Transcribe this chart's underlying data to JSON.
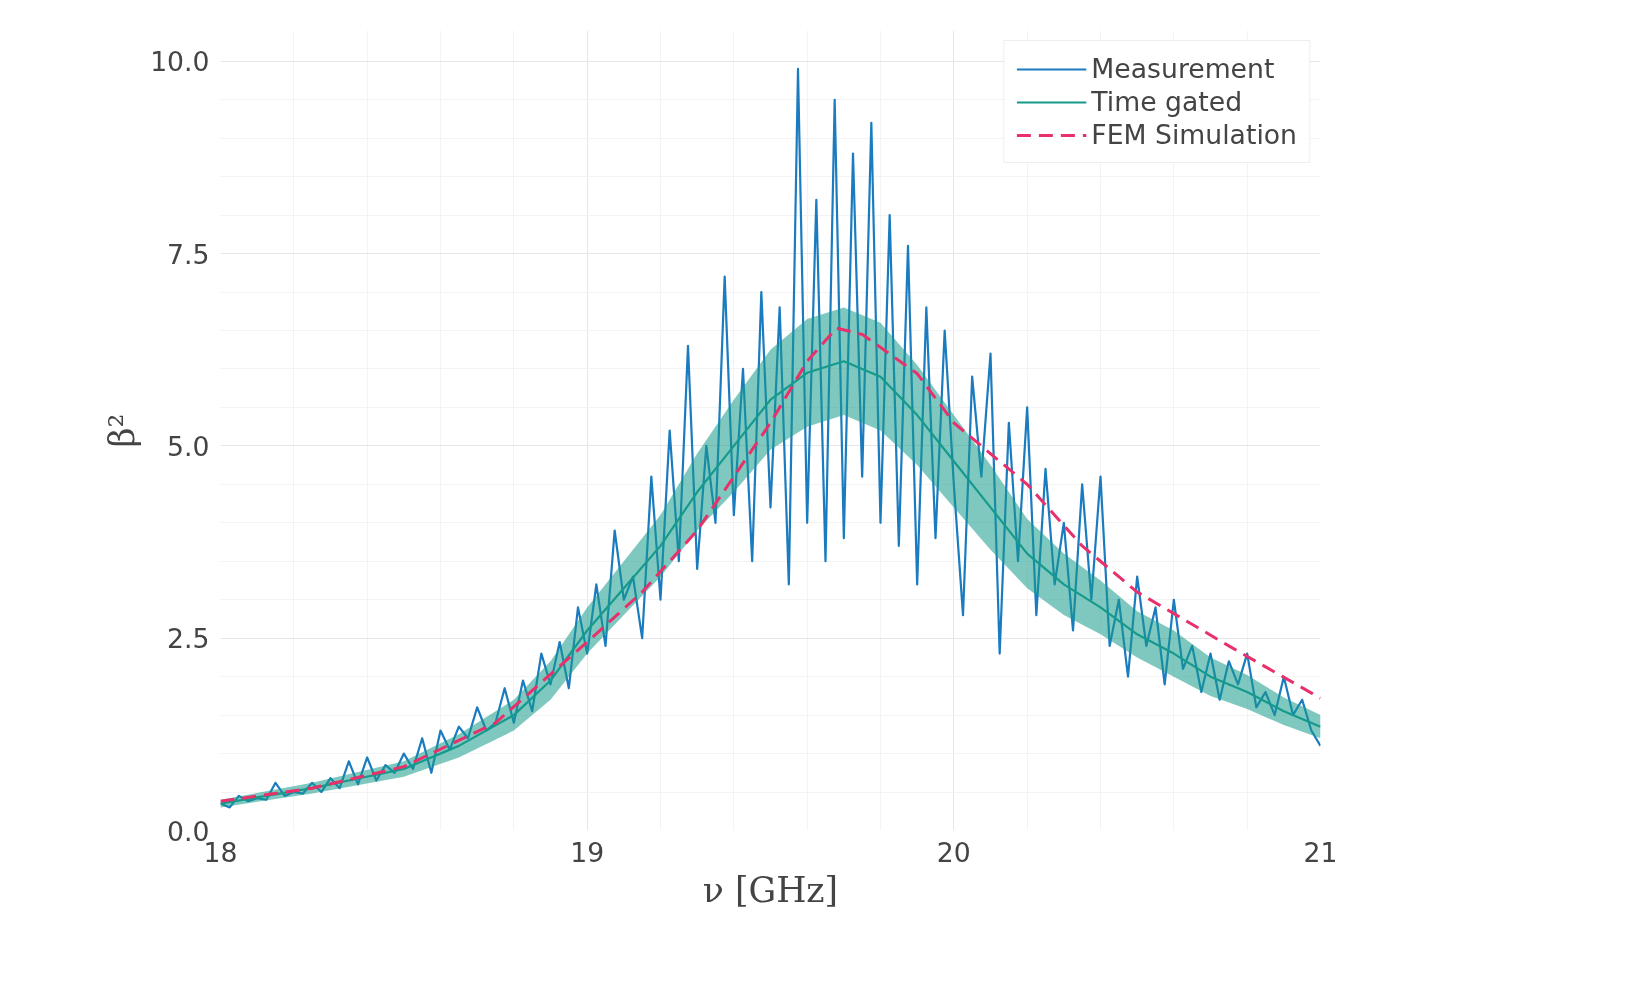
{
  "chart_data": {
    "type": "line",
    "xlabel": "ν [GHz]",
    "ylabel": "β²",
    "xlim": [
      18,
      21
    ],
    "ylim": [
      0,
      10.4
    ],
    "xticks": [
      18,
      19,
      20,
      21
    ],
    "yticks": [
      {
        "value": 0,
        "label": "0.0"
      },
      {
        "value": 2.5,
        "label": "2.5"
      },
      {
        "value": 5,
        "label": "5.0"
      },
      {
        "value": 7.5,
        "label": "7.5"
      },
      {
        "value": 10,
        "label": "10.0"
      }
    ],
    "grid": true,
    "legend": "top right",
    "line_style": "solid",
    "marker": "none",
    "series": [
      {
        "name": "Measurement",
        "color": "#1a7bbf",
        "x": [
          18.0,
          18.025,
          18.05,
          18.075,
          18.1,
          18.125,
          18.15,
          18.175,
          18.2,
          18.225,
          18.25,
          18.275,
          18.3,
          18.325,
          18.35,
          18.375,
          18.4,
          18.425,
          18.45,
          18.475,
          18.5,
          18.525,
          18.55,
          18.575,
          18.6,
          18.625,
          18.65,
          18.675,
          18.7,
          18.725,
          18.75,
          18.775,
          18.8,
          18.825,
          18.85,
          18.875,
          18.9,
          18.925,
          18.95,
          18.975,
          19.0,
          19.025,
          19.05,
          19.075,
          19.1,
          19.125,
          19.15,
          19.175,
          19.2,
          19.225,
          19.25,
          19.275,
          19.3,
          19.325,
          19.35,
          19.375,
          19.4,
          19.425,
          19.45,
          19.475,
          19.5,
          19.525,
          19.55,
          19.575,
          19.6,
          19.625,
          19.65,
          19.675,
          19.7,
          19.725,
          19.75,
          19.775,
          19.8,
          19.825,
          19.85,
          19.875,
          19.9,
          19.925,
          19.95,
          19.975,
          20.0,
          20.025,
          20.05,
          20.075,
          20.1,
          20.125,
          20.15,
          20.175,
          20.2,
          20.225,
          20.25,
          20.275,
          20.3,
          20.325,
          20.35,
          20.375,
          20.4,
          20.425,
          20.45,
          20.475,
          20.5,
          20.525,
          20.55,
          20.575,
          20.6,
          20.625,
          20.65,
          20.675,
          20.7,
          20.725,
          20.75,
          20.775,
          20.8,
          20.825,
          20.85,
          20.875,
          20.9,
          20.925,
          20.95,
          20.975,
          21.0
        ],
        "values": [
          0.35,
          0.3,
          0.45,
          0.38,
          0.42,
          0.4,
          0.62,
          0.45,
          0.5,
          0.48,
          0.62,
          0.5,
          0.68,
          0.55,
          0.9,
          0.6,
          0.95,
          0.65,
          0.85,
          0.75,
          1.0,
          0.8,
          1.2,
          0.75,
          1.3,
          1.05,
          1.35,
          1.2,
          1.6,
          1.3,
          1.4,
          1.85,
          1.4,
          1.95,
          1.55,
          2.3,
          1.9,
          2.45,
          1.85,
          2.9,
          2.3,
          3.2,
          2.4,
          3.9,
          3.0,
          3.3,
          2.5,
          4.6,
          3.0,
          5.2,
          3.5,
          6.3,
          3.4,
          5.0,
          4.0,
          7.2,
          4.1,
          6.0,
          3.5,
          7.0,
          4.2,
          6.8,
          3.2,
          9.9,
          4.0,
          8.2,
          3.5,
          9.5,
          3.8,
          8.8,
          4.6,
          9.2,
          4.0,
          8.0,
          3.7,
          7.6,
          3.2,
          6.8,
          3.8,
          6.5,
          4.5,
          2.8,
          5.9,
          4.6,
          6.2,
          2.3,
          5.3,
          3.5,
          5.5,
          2.8,
          4.7,
          3.2,
          4.0,
          2.6,
          4.5,
          3.0,
          4.6,
          2.4,
          3.0,
          2.0,
          3.3,
          2.4,
          2.9,
          1.9,
          3.0,
          2.1,
          2.4,
          1.8,
          2.3,
          1.7,
          2.2,
          1.9,
          2.3,
          1.6,
          1.8,
          1.5,
          2.0,
          1.5,
          1.7,
          1.3,
          1.1
        ]
      },
      {
        "name": "Time gated",
        "color": "#159a8c",
        "x": [
          18.0,
          18.25,
          18.5,
          18.65,
          18.8,
          18.9,
          19.0,
          19.1,
          19.2,
          19.3,
          19.4,
          19.5,
          19.6,
          19.7,
          19.8,
          19.9,
          20.0,
          20.1,
          20.2,
          20.3,
          20.4,
          20.5,
          20.6,
          20.7,
          20.8,
          20.9,
          21.0
        ],
        "values": [
          0.35,
          0.55,
          0.8,
          1.1,
          1.5,
          1.95,
          2.6,
          3.15,
          3.7,
          4.4,
          5.0,
          5.6,
          5.95,
          6.1,
          5.9,
          5.4,
          4.8,
          4.2,
          3.6,
          3.2,
          2.9,
          2.55,
          2.3,
          2.0,
          1.8,
          1.55,
          1.35
        ],
        "lower": [
          0.3,
          0.48,
          0.7,
          0.95,
          1.3,
          1.7,
          2.3,
          2.8,
          3.3,
          3.9,
          4.4,
          4.95,
          5.25,
          5.4,
          5.2,
          4.75,
          4.2,
          3.65,
          3.15,
          2.8,
          2.55,
          2.25,
          2.0,
          1.75,
          1.58,
          1.37,
          1.2
        ],
        "upper": [
          0.4,
          0.62,
          0.9,
          1.25,
          1.7,
          2.2,
          2.9,
          3.5,
          4.1,
          4.9,
          5.6,
          6.25,
          6.65,
          6.8,
          6.6,
          6.05,
          5.4,
          4.75,
          4.05,
          3.6,
          3.25,
          2.85,
          2.6,
          2.25,
          2.02,
          1.73,
          1.5
        ]
      },
      {
        "name": "FEM Simulation",
        "color": "#e8306a",
        "line_style": "dashed",
        "x": [
          18.0,
          18.25,
          18.5,
          18.75,
          19.0,
          19.15,
          19.3,
          19.4,
          19.5,
          19.6,
          19.68,
          19.75,
          19.9,
          20.0,
          20.2,
          20.35,
          20.5,
          20.75,
          21.0
        ],
        "values": [
          0.38,
          0.55,
          0.83,
          1.4,
          2.45,
          3.1,
          3.9,
          4.6,
          5.3,
          6.1,
          6.53,
          6.45,
          5.94,
          5.3,
          4.5,
          3.7,
          3.1,
          2.4,
          1.72
        ]
      }
    ]
  }
}
